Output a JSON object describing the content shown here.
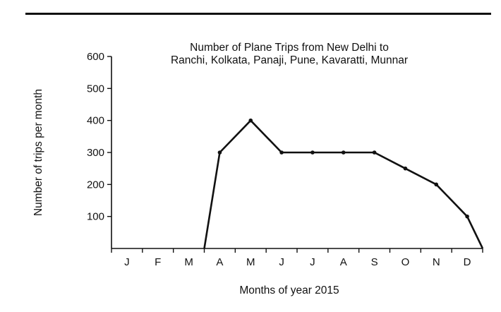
{
  "chart_data": {
    "type": "line",
    "title": "Number of Plane Trips from New Delhi to Ranchi, Kolkata, Panaji, Pune, Kavaratti, Munnar",
    "title_lines": [
      "Number of Plane Trips from New Delhi to",
      "Ranchi, Kolkata, Panaji, Pune, Kavaratti, Munnar"
    ],
    "xlabel": "Months of year 2015",
    "ylabel": "Number of trips per month",
    "categories": [
      "J",
      "F",
      "M",
      "A",
      "M",
      "J",
      "J",
      "A",
      "S",
      "O",
      "N",
      "D"
    ],
    "yticks": [
      100,
      200,
      300,
      400,
      500,
      600
    ],
    "ylim": [
      0,
      600
    ],
    "series": [
      {
        "points": [
          {
            "x": 3.0,
            "y": 0
          },
          {
            "x": 3.5,
            "y": 300
          },
          {
            "x": 4.5,
            "y": 400
          },
          {
            "x": 5.5,
            "y": 300
          },
          {
            "x": 6.5,
            "y": 300
          },
          {
            "x": 7.5,
            "y": 300
          },
          {
            "x": 8.5,
            "y": 300
          },
          {
            "x": 9.5,
            "y": 250
          },
          {
            "x": 10.5,
            "y": 200
          },
          {
            "x": 11.5,
            "y": 100
          },
          {
            "x": 12.0,
            "y": 0
          }
        ]
      }
    ],
    "grid": false,
    "line_color": "#111111"
  }
}
